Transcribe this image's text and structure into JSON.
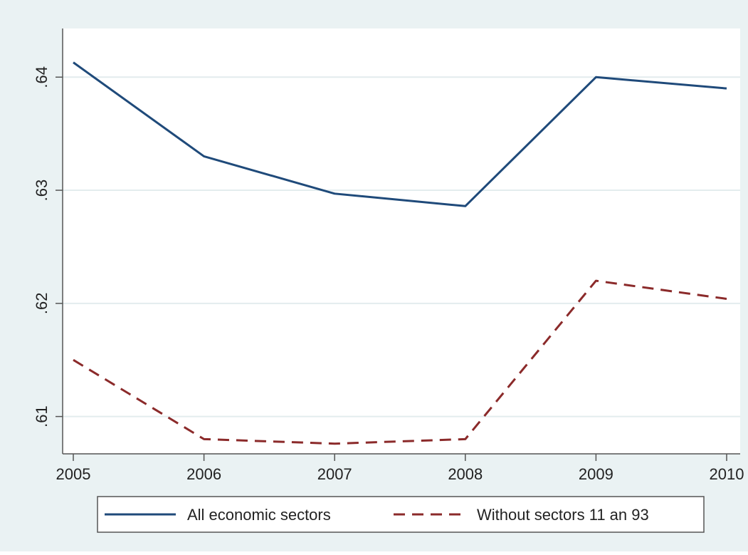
{
  "chart_data": {
    "type": "line",
    "title": "",
    "xlabel": "",
    "ylabel": "",
    "x": [
      2005,
      2006,
      2007,
      2008,
      2009,
      2010
    ],
    "x_tick_labels": [
      "2005",
      "2006",
      "2007",
      "2008",
      "2009",
      "2010"
    ],
    "y_tick_values": [
      0.61,
      0.62,
      0.63,
      0.64
    ],
    "y_tick_labels": [
      ".61",
      ".62",
      ".63",
      ".64"
    ],
    "xlim": [
      2005,
      2010
    ],
    "ylim": [
      0.6067,
      0.6443
    ],
    "grid": true,
    "legend_position": "bottom",
    "background_color": "#eaf2f3",
    "plot_background_color": "#ffffff",
    "series": [
      {
        "name": "All economic sectors",
        "values": [
          0.6413,
          0.633,
          0.6297,
          0.6286,
          0.64,
          0.639
        ],
        "color": "#1f4a7a",
        "line_style": "solid"
      },
      {
        "name": "Without sectors 11 an 93",
        "values": [
          0.615,
          0.608,
          0.6076,
          0.608,
          0.622,
          0.6204
        ],
        "color": "#8b2a2a",
        "line_style": "dashed"
      }
    ]
  }
}
